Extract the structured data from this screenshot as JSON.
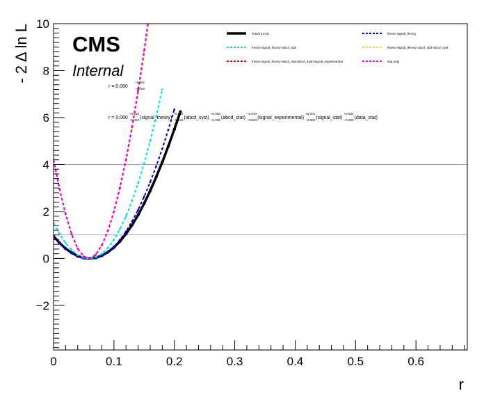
{
  "chart_data": {
    "type": "line",
    "title": "",
    "xlabel": "r",
    "ylabel": "- 2 Δ ln L",
    "xlim": [
      0,
      0.685
    ],
    "ylim": [
      -3.9,
      10
    ],
    "x_ticks": [
      0,
      0.1,
      0.2,
      0.3,
      0.4,
      0.5,
      0.6
    ],
    "x_tick_labels": [
      "0",
      "0.1",
      "0.2",
      "0.3",
      "0.4",
      "0.5",
      "0.6"
    ],
    "y_ticks": [
      -2,
      0,
      2,
      4,
      6,
      8,
      10
    ],
    "y_tick_labels": [
      "−2",
      "0",
      "2",
      "4",
      "6",
      "8",
      "10"
    ],
    "reference_lines": [
      1,
      4
    ],
    "grid": false,
    "legend_position": "top-right",
    "cms_label": "CMS",
    "sublabel": "Internal",
    "annotation_1": {
      "prefix": "r = 0.060",
      "up": "+0.061",
      "down": "−0.050"
    },
    "annotation_2": {
      "prefix": "r = 0.060",
      "terms": [
        {
          "up": "+0.019",
          "down": "−0.004",
          "name": "(signal_theory)"
        },
        {
          "up": "+0.032",
          "down": "−0.034",
          "name": "(abcd_syst)"
        },
        {
          "up": "+0.035",
          "down": "−0.036",
          "name": "(abcd_stat)"
        },
        {
          "up": "+0.034",
          "down": "−0.023",
          "name": "(signal_experimental)"
        },
        {
          "up": "+0.001",
          "down": "−0.000",
          "name": "(signal_stat)"
        },
        {
          "up": "+0.032",
          "down": "−0.030",
          "name": "(data_stat)"
        }
      ]
    },
    "series": [
      {
        "name": "Total Uncert.",
        "color": "#000000",
        "dash": "solid",
        "x": [
          0,
          0.01,
          0.02,
          0.03,
          0.04,
          0.05,
          0.06,
          0.07,
          0.08,
          0.09,
          0.1,
          0.11,
          0.12,
          0.13,
          0.14,
          0.15,
          0.16,
          0.17,
          0.18,
          0.19,
          0.2,
          0.21
        ],
        "y": [
          0.95,
          0.66,
          0.42,
          0.24,
          0.1,
          0.02,
          0.0,
          0.03,
          0.12,
          0.27,
          0.47,
          0.73,
          1.05,
          1.42,
          1.85,
          2.34,
          2.88,
          3.47,
          4.1,
          4.78,
          5.5,
          6.25
        ]
      },
      {
        "name": "freeze signal_theory",
        "color": "#0000cc",
        "dash": "dashed",
        "x": [
          0,
          0.01,
          0.02,
          0.03,
          0.04,
          0.05,
          0.06,
          0.07,
          0.08,
          0.09,
          0.1,
          0.11,
          0.12,
          0.13,
          0.14,
          0.15,
          0.16,
          0.17,
          0.18,
          0.19,
          0.2
        ],
        "y": [
          0.95,
          0.67,
          0.43,
          0.24,
          0.1,
          0.02,
          0.0,
          0.03,
          0.12,
          0.28,
          0.5,
          0.8,
          1.15,
          1.58,
          2.07,
          2.63,
          3.25,
          3.93,
          4.67,
          5.48,
          6.35
        ]
      },
      {
        "name": "freeze signal_theory+abcd_stat",
        "color": "#00e0e0",
        "dash": "dashed",
        "x": [
          0,
          0.01,
          0.02,
          0.03,
          0.04,
          0.05,
          0.06,
          0.07,
          0.08,
          0.09,
          0.1,
          0.11,
          0.12,
          0.13,
          0.14,
          0.15,
          0.16,
          0.17,
          0.18
        ],
        "y": [
          1.5,
          1.05,
          0.66,
          0.36,
          0.15,
          0.03,
          0.0,
          0.05,
          0.2,
          0.45,
          0.8,
          1.25,
          1.8,
          2.45,
          3.2,
          4.05,
          5.0,
          6.05,
          7.2
        ]
      },
      {
        "name": "freeze signal_theory+abcd_stat+abcd_syst",
        "color": "#e8e800",
        "dash": "dashed",
        "x": [
          0,
          0.01,
          0.02,
          0.03,
          0.04,
          0.05,
          0.06,
          0.07,
          0.08,
          0.09,
          0.1,
          0.11,
          0.12,
          0.13,
          0.14,
          0.15,
          0.16
        ],
        "y": [
          4.2,
          2.95,
          1.88,
          1.02,
          0.42,
          0.08,
          0.0,
          0.16,
          0.55,
          1.16,
          1.97,
          2.97,
          4.15,
          5.5,
          7.0,
          8.65,
          10.45
        ]
      },
      {
        "name": "freeze signal_theory+abcd_stat+abcd_syst+signal_experimental",
        "color": "#cc0000",
        "dash": "dashed",
        "x": [
          0,
          0.01,
          0.02,
          0.03,
          0.04,
          0.05,
          0.06,
          0.07,
          0.08,
          0.09,
          0.1,
          0.11,
          0.12,
          0.13,
          0.14,
          0.15,
          0.16
        ],
        "y": [
          4.2,
          2.96,
          1.89,
          1.03,
          0.42,
          0.08,
          0.0,
          0.16,
          0.56,
          1.18,
          2.0,
          3.02,
          4.22,
          5.6,
          7.15,
          8.85,
          10.7
        ]
      },
      {
        "name": "stat only",
        "color": "#ee00ee",
        "dash": "dashed",
        "x": [
          0,
          0.01,
          0.02,
          0.03,
          0.04,
          0.05,
          0.06,
          0.07,
          0.08,
          0.09,
          0.1,
          0.11,
          0.12,
          0.13,
          0.14,
          0.15,
          0.16
        ],
        "y": [
          4.2,
          2.96,
          1.89,
          1.03,
          0.42,
          0.08,
          0.0,
          0.16,
          0.56,
          1.18,
          2.0,
          3.02,
          4.22,
          5.6,
          7.15,
          8.85,
          10.7
        ]
      }
    ]
  }
}
